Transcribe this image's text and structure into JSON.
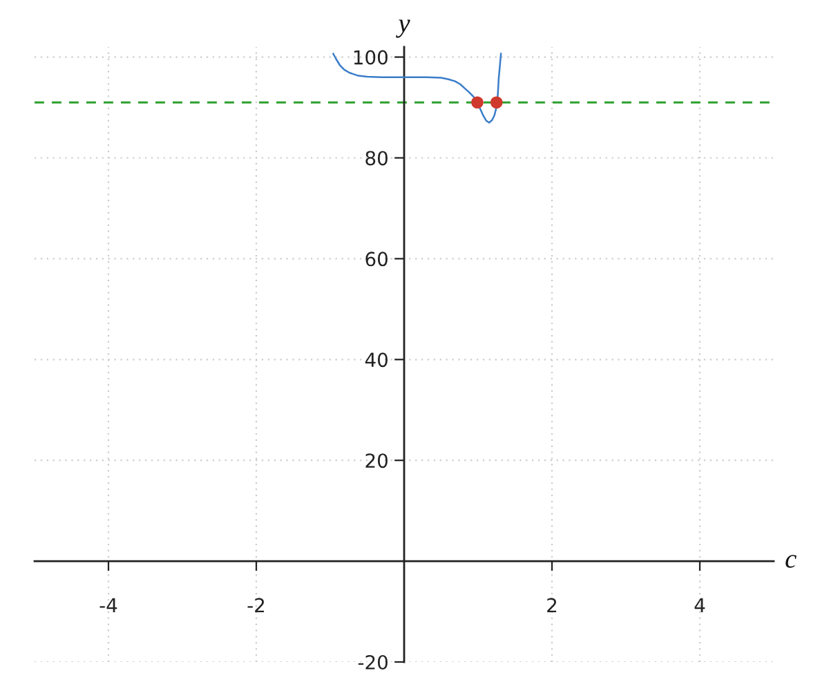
{
  "chart_data": {
    "type": "line",
    "xlabel": "c",
    "ylabel": "y",
    "xlim": [
      -5,
      5
    ],
    "ylim": [
      -20,
      102
    ],
    "xticks": [
      -4,
      -2,
      2,
      4
    ],
    "yticks": [
      -20,
      20,
      40,
      60,
      80,
      100
    ],
    "grid": true,
    "series": [
      {
        "color": "#3a7dc9",
        "x": [
          -0.96,
          -0.92,
          -0.87,
          -0.81,
          -0.74,
          -0.62,
          -0.5,
          -0.3,
          0,
          0.3,
          0.5,
          0.6,
          0.69,
          0.76,
          0.82,
          0.88,
          0.94,
          0.99,
          1.03,
          1.07,
          1.11,
          1.15,
          1.19,
          1.22,
          1.24,
          1.26,
          1.27,
          1.28,
          1.295,
          1.31
        ],
        "values": [
          100.7,
          99.6,
          98.4,
          97.5,
          96.9,
          96.3,
          96.1,
          96.0,
          96.0,
          96.0,
          95.9,
          95.6,
          95.2,
          94.6,
          93.8,
          93.0,
          92.1,
          91.0,
          89.7,
          88.4,
          87.4,
          87.0,
          87.5,
          88.4,
          89.5,
          91.0,
          93.2,
          95.8,
          98.2,
          100.7
        ]
      },
      {
        "type": "scatter",
        "color": "#d0392e",
        "marker": "circle",
        "x": [
          0.99,
          1.25
        ],
        "values": [
          91,
          91
        ]
      }
    ],
    "ref_lines": [
      {
        "axis": "y",
        "value": 91,
        "color": "#2ca02c",
        "line_style": "dashed"
      }
    ]
  }
}
